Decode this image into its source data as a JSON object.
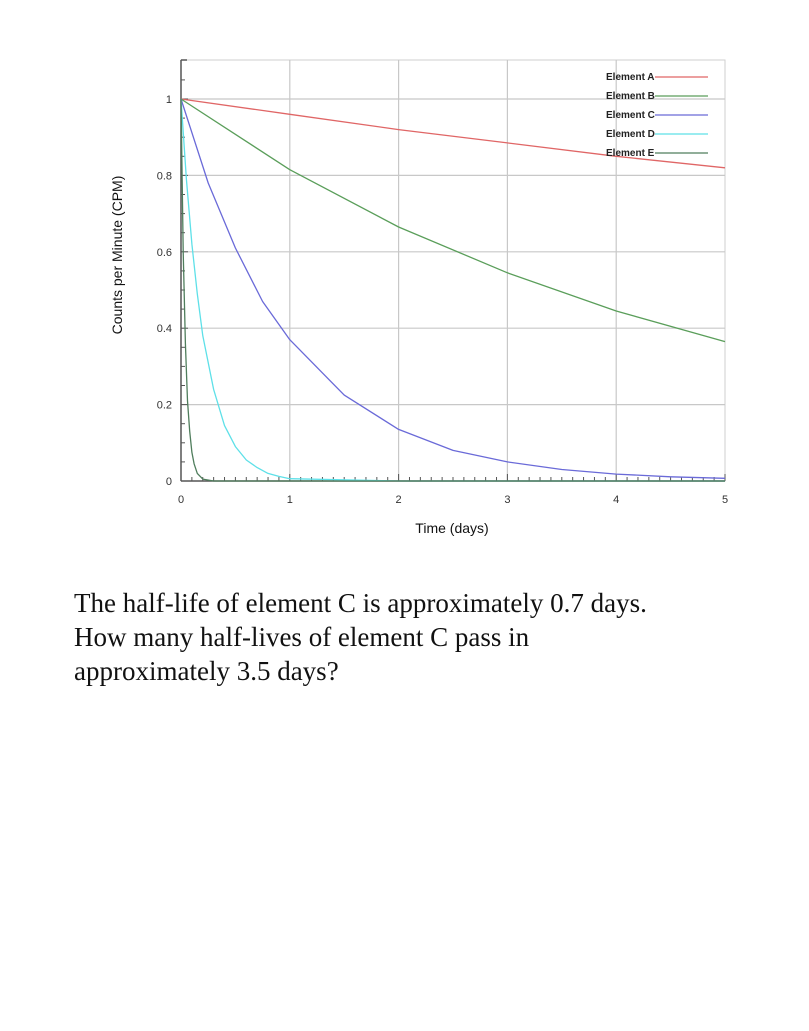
{
  "chart_data": {
    "type": "line",
    "xlabel": "Time (days)",
    "ylabel": "Counts per Minute (CPM)",
    "xlim": [
      0,
      5
    ],
    "ylim": [
      0,
      1.05
    ],
    "x_ticks": [
      "0",
      "1",
      "2",
      "3",
      "4",
      "5"
    ],
    "y_ticks": [
      "0",
      "0.2",
      "0.4",
      "0.6",
      "0.8",
      "1"
    ],
    "grid": true,
    "legend_position": "top-right",
    "series": [
      {
        "name": "Element A",
        "color": "#e06666",
        "x": [
          0,
          1,
          2,
          3,
          4,
          5
        ],
        "values": [
          1.0,
          0.96,
          0.92,
          0.885,
          0.85,
          0.82
        ]
      },
      {
        "name": "Element B",
        "color": "#5a9e5a",
        "x": [
          0,
          1,
          2,
          3,
          4,
          5
        ],
        "values": [
          1.0,
          0.815,
          0.665,
          0.545,
          0.445,
          0.365
        ]
      },
      {
        "name": "Element C",
        "color": "#6a6ad8",
        "x": [
          0,
          0.25,
          0.5,
          0.75,
          1,
          1.5,
          2,
          2.5,
          3,
          3.5,
          4,
          4.5,
          5
        ],
        "values": [
          1.0,
          0.78,
          0.61,
          0.47,
          0.37,
          0.225,
          0.135,
          0.08,
          0.05,
          0.03,
          0.018,
          0.011,
          0.007
        ]
      },
      {
        "name": "Element D",
        "color": "#5ee0e8",
        "x": [
          0,
          0.05,
          0.1,
          0.15,
          0.2,
          0.3,
          0.4,
          0.5,
          0.6,
          0.7,
          0.8,
          0.9,
          1.0,
          2,
          3,
          4,
          5
        ],
        "values": [
          1.0,
          0.79,
          0.62,
          0.49,
          0.38,
          0.24,
          0.145,
          0.09,
          0.055,
          0.035,
          0.02,
          0.012,
          0.006,
          0,
          0,
          0,
          0
        ]
      },
      {
        "name": "Element E",
        "color": "#4f7d5c",
        "x": [
          0,
          0.02,
          0.04,
          0.06,
          0.08,
          0.1,
          0.12,
          0.15,
          0.2,
          0.3,
          1,
          2,
          3,
          4,
          5
        ],
        "values": [
          1.0,
          0.6,
          0.36,
          0.21,
          0.13,
          0.075,
          0.045,
          0.02,
          0.005,
          0,
          0,
          0,
          0,
          0,
          0
        ]
      }
    ]
  },
  "question": {
    "line1": "The half-life of element C is approximately 0.7 days.",
    "line2": "How many half-lives of element C pass in",
    "line3": "approximately 3.5 days?"
  }
}
